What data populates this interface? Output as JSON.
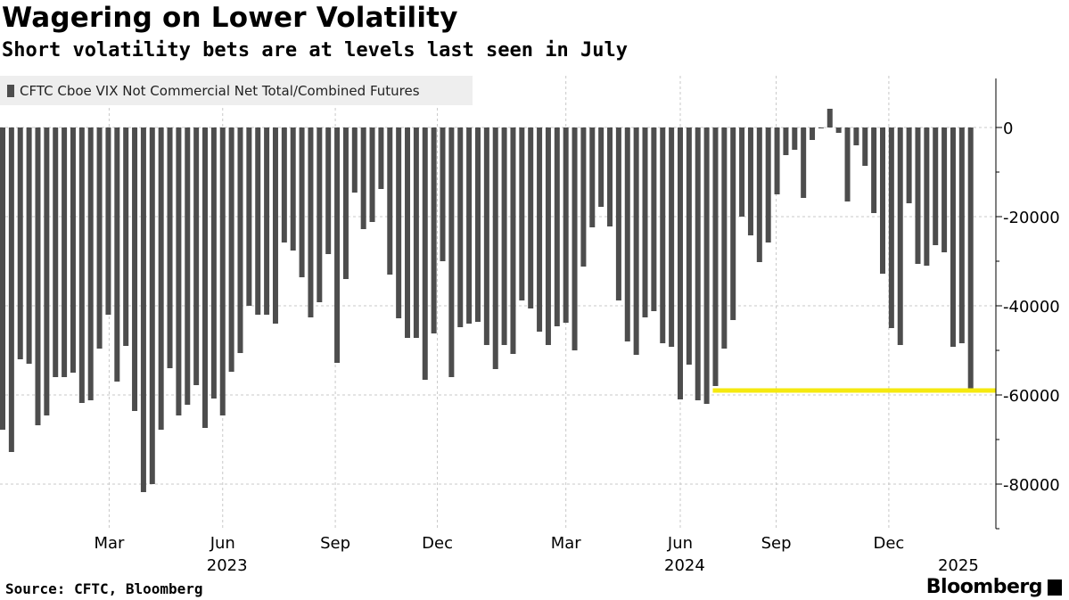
{
  "header": {
    "title": "Wagering on Lower Volatility",
    "subtitle": "Short volatility bets are at levels last seen in July"
  },
  "footer": {
    "source": "Source: CFTC, Bloomberg",
    "logo": "Bloomberg"
  },
  "colors": {
    "bar": "#4d4d4d",
    "highlight": "#f5e90f",
    "grid": "#c8c8c8"
  },
  "chart_data": {
    "type": "bar",
    "title": "Wagering on Lower Volatility",
    "subtitle": "Short volatility bets are at levels last seen in July",
    "legend": [
      "CFTC Cboe VIX Not Commercial Net Total/Combined Futures"
    ],
    "legend_placement": "top-left",
    "frequency": "weekly",
    "x_unit": "week index",
    "ylim": [
      -90000,
      10000
    ],
    "y_ticks": [
      0,
      -20000,
      -40000,
      -60000,
      -80000
    ],
    "y_tick_labels": [
      "0",
      "-20000",
      "-40000",
      "-60000",
      "-80000"
    ],
    "x_ticks": [
      {
        "label": "Mar",
        "week": 12.1
      },
      {
        "label": "Jun",
        "week": 25.0
      },
      {
        "label": "Sep",
        "week": 37.8
      },
      {
        "label": "Dec",
        "week": 49.4
      },
      {
        "label": "Mar",
        "week": 64.0
      },
      {
        "label": "Jun",
        "week": 77.0
      },
      {
        "label": "Sep",
        "week": 87.9
      },
      {
        "label": "Dec",
        "week": 100.7
      }
    ],
    "year_labels": [
      {
        "label": "2023",
        "week": 25.5
      },
      {
        "label": "2024",
        "week": 77.5
      },
      {
        "label": "2025",
        "week": 108.6
      }
    ],
    "grid": true,
    "values": [
      -67800,
      -72800,
      -52000,
      -53000,
      -66800,
      -64600,
      -56000,
      -56000,
      -55000,
      -61800,
      -61200,
      -49600,
      -42000,
      -57000,
      -49000,
      -63600,
      -81800,
      -80000,
      -67800,
      -54000,
      -64600,
      -62200,
      -57800,
      -67400,
      -60800,
      -64600,
      -54800,
      -50600,
      -40000,
      -42000,
      -42000,
      -44000,
      -25800,
      -27600,
      -33600,
      -42600,
      -39200,
      -28400,
      -52800,
      -34000,
      -14600,
      -22800,
      -21200,
      -13800,
      -33000,
      -42800,
      -47200,
      -47200,
      -56600,
      -46200,
      -30000,
      -56000,
      -44800,
      -44000,
      -43600,
      -48800,
      -54200,
      -48800,
      -50800,
      -38800,
      -40600,
      -45800,
      -48800,
      -44600,
      -43800,
      -50000,
      -31200,
      -22400,
      -17800,
      -22200,
      -38800,
      -48000,
      -51000,
      -42600,
      -41200,
      -48400,
      -49200,
      -61000,
      -53200,
      -61200,
      -62000,
      -58000,
      -49600,
      -43200,
      -20000,
      -24200,
      -30200,
      -25800,
      -15000,
      -6200,
      -5000,
      -15800,
      -2800,
      -200,
      4200,
      -1200,
      -16600,
      -4000,
      -8600,
      -19200,
      -32800,
      -45000,
      -48800,
      -17000,
      -30600,
      -31000,
      -26400,
      -28000,
      -49200,
      -48400,
      -58600
    ],
    "annotation": {
      "type": "horizontal-line",
      "value": -59000,
      "from_week": 81,
      "color": "#f5e90f"
    }
  }
}
